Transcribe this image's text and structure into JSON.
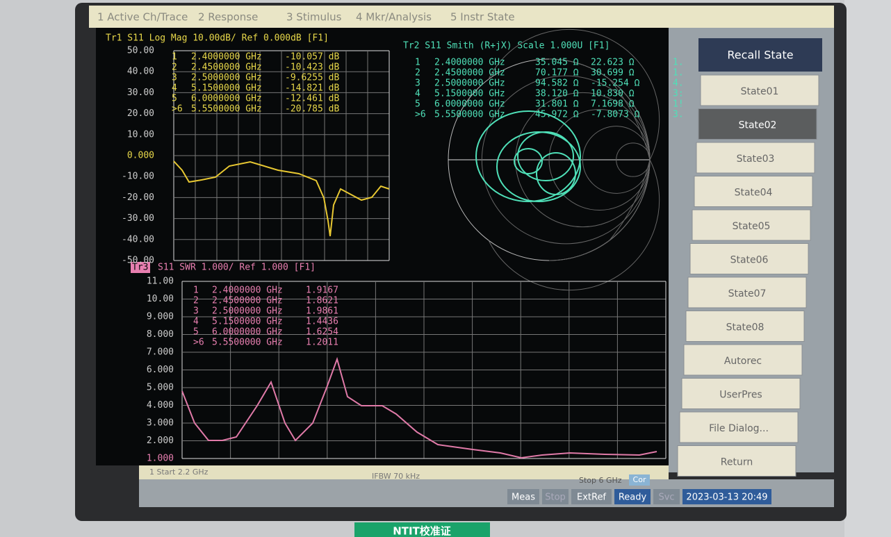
{
  "menu": [
    "1 Active Ch/Trace",
    "2 Response",
    "3 Stimulus",
    "4 Mkr/Analysis",
    "5 Instr State"
  ],
  "trace1": {
    "header": "Tr1 S11 Log Mag 10.00dB/ Ref 0.000dB [F1]",
    "yticks": [
      "50.00",
      "40.00",
      "30.00",
      "20.00",
      "10.00",
      "0.000",
      "-10.00",
      "-20.00",
      "-30.00",
      "-40.00",
      "-50.00"
    ],
    "markers": [
      [
        "1",
        "2.4000000 GHz",
        "-10.057 dB"
      ],
      [
        "2",
        "2.4500000 GHz",
        "-10.423 dB"
      ],
      [
        "3",
        "2.5000000 GHz",
        "-9.6255 dB"
      ],
      [
        "4",
        "5.1500000 GHz",
        "-14.821 dB"
      ],
      [
        "5",
        "6.0000000 GHz",
        "-12.461 dB"
      ],
      [
        ">6",
        "5.5500000 GHz",
        "-20.785 dB"
      ]
    ]
  },
  "trace2": {
    "header": "Tr2 S11 Smith (R+jX) Scale 1.000U [F1]",
    "markers": [
      [
        "1",
        "2.4000000 GHz",
        "35.045 Ω",
        "22.623 Ω",
        "1."
      ],
      [
        "2",
        "2.4500000 GHz",
        "70.177 Ω",
        "30.699 Ω",
        "1."
      ],
      [
        "3",
        "2.5000000 GHz",
        "94.582 Ω",
        "-15.254 Ω",
        "4."
      ],
      [
        "4",
        "5.1500000 GHz",
        "38.120 Ω",
        "10.830 Ω",
        "3:"
      ],
      [
        "5",
        "6.0000000 GHz",
        "31.801 Ω",
        "7.1698 Ω",
        "1!"
      ],
      [
        ">6",
        "5.5500000 GHz",
        "45.972 Ω",
        "-7.8073 Ω",
        "3."
      ]
    ]
  },
  "trace3": {
    "label": "Tr3",
    "header": "S11 SWR 1.000/ Ref 1.000 [F1]",
    "yticks": [
      "11.00",
      "10.00",
      "9.000",
      "8.000",
      "7.000",
      "6.000",
      "5.000",
      "4.000",
      "3.000",
      "2.000",
      "1.000"
    ],
    "markers": [
      [
        "1",
        "2.4000000 GHz",
        "1.9167"
      ],
      [
        "2",
        "2.4500000 GHz",
        "1.8621"
      ],
      [
        "3",
        "2.5000000 GHz",
        "1.9861"
      ],
      [
        "4",
        "5.1500000 GHz",
        "1.4436"
      ],
      [
        "5",
        "6.0000000 GHz",
        "1.6254"
      ],
      [
        ">6",
        "5.5500000 GHz",
        "1.2011"
      ]
    ]
  },
  "channel_status": {
    "start": "1 Start 2.2 GHz",
    "ifbw": "IFBW 70 kHz",
    "stop": "Stop 6 GHz",
    "cor": "Cor"
  },
  "status_bar": [
    "Meas",
    "Stop",
    "ExtRef",
    "Ready",
    "Svc",
    "2023-03-13 20:49"
  ],
  "softkeys": {
    "title": "Recall State",
    "keys": [
      "State01",
      "State02",
      "State03",
      "State04",
      "State05",
      "State06",
      "State07",
      "State08",
      "Autorec",
      "UserPres",
      "File Dialog...",
      "Return"
    ]
  },
  "sticker": "NTIT校准证"
}
